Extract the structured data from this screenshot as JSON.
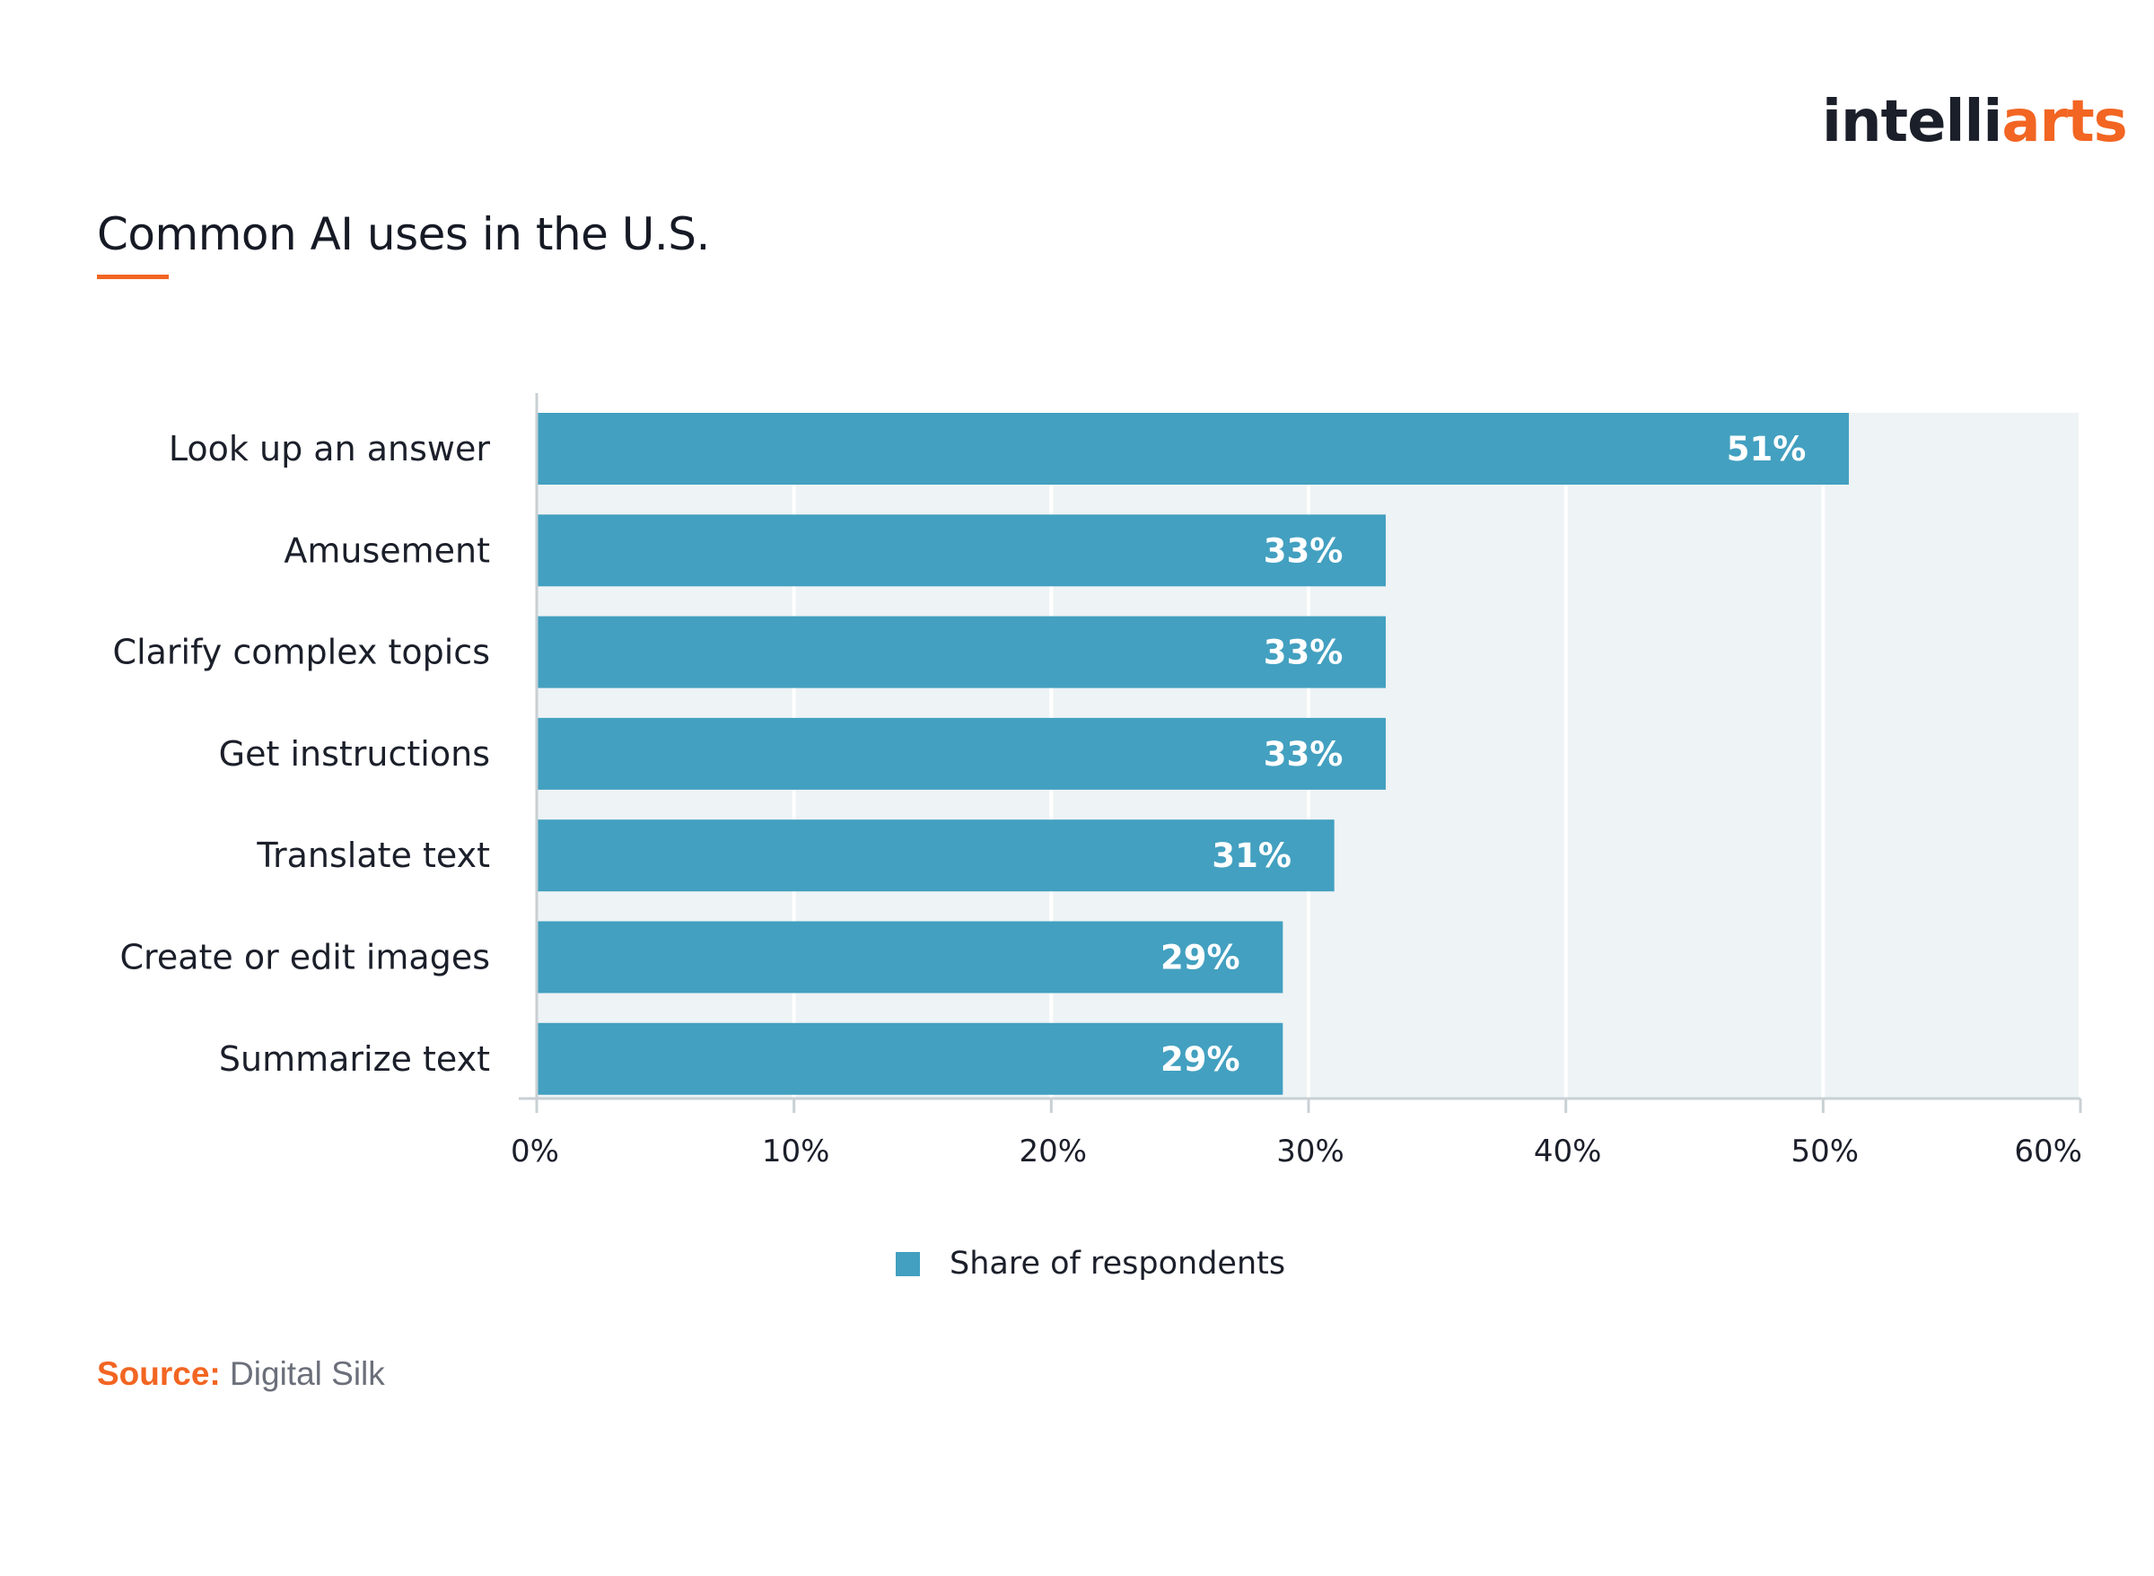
{
  "brand": {
    "logo_dark": "intelli",
    "logo_accent": "arts"
  },
  "colors": {
    "bar": "#43a0c0",
    "accent": "#f26522",
    "plot_bg": "#eef3f5",
    "text": "#1b1f2a"
  },
  "source": {
    "label": "Source:",
    "value": "Digital Silk"
  },
  "chart_data": {
    "type": "bar",
    "orientation": "horizontal",
    "title": "Common AI uses in the U.S.",
    "categories": [
      "Look up an answer",
      "Amusement",
      "Clarify complex topics",
      "Get instructions",
      "Translate text",
      "Create or edit images",
      "Summarize text"
    ],
    "series": [
      {
        "name": "Share of respondents",
        "values": [
          51,
          33,
          33,
          33,
          31,
          29,
          29
        ]
      }
    ],
    "data_labels": [
      "51%",
      "33%",
      "33%",
      "33%",
      "31%",
      "29%",
      "29%"
    ],
    "x_ticks": [
      "0%",
      "10%",
      "20%",
      "30%",
      "40%",
      "50%",
      "60%"
    ],
    "xlim": [
      0,
      60
    ],
    "grid": true,
    "legend": "bottom-center"
  }
}
